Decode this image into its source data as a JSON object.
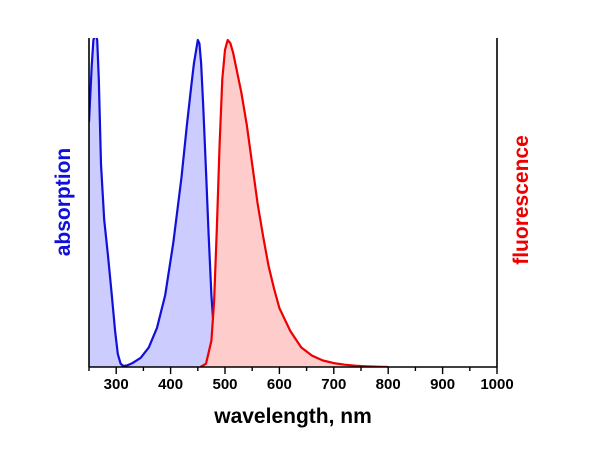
{
  "chart_data": {
    "type": "area",
    "xlabel": "wavelength, nm",
    "ylabel_left": "absorption",
    "ylabel_right": "fluorescence",
    "xlim": [
      250,
      1000
    ],
    "ylim": [
      0,
      1
    ],
    "x_ticks": [
      300,
      400,
      500,
      600,
      700,
      800,
      900,
      1000
    ],
    "grid": false,
    "colors": {
      "absorption_line": "#1010d8",
      "absorption_fill": "#ccccff",
      "fluorescence_line": "#ee0000",
      "fluorescence_fill": "#ffcccc"
    },
    "series": [
      {
        "name": "absorption",
        "axis": "left",
        "x": [
          250,
          255,
          258,
          262,
          265,
          268,
          272,
          278,
          285,
          292,
          298,
          303,
          308,
          313,
          320,
          330,
          345,
          360,
          375,
          390,
          405,
          420,
          430,
          438,
          443,
          447,
          450,
          453,
          456,
          460,
          465,
          470,
          475,
          480,
          485,
          490,
          500,
          510,
          520,
          530,
          540
        ],
        "values": [
          0.75,
          0.92,
          1.0,
          1.02,
          1.0,
          0.88,
          0.62,
          0.45,
          0.34,
          0.22,
          0.11,
          0.04,
          0.01,
          0.003,
          0.005,
          0.012,
          0.028,
          0.06,
          0.12,
          0.22,
          0.38,
          0.58,
          0.74,
          0.86,
          0.93,
          0.97,
          1.0,
          0.99,
          0.93,
          0.8,
          0.6,
          0.4,
          0.22,
          0.1,
          0.04,
          0.015,
          0.006,
          0.004,
          0.005,
          0.004,
          0.0
        ]
      },
      {
        "name": "fluorescence",
        "axis": "right",
        "x": [
          455,
          465,
          475,
          480,
          485,
          490,
          495,
          500,
          505,
          510,
          515,
          520,
          530,
          540,
          550,
          560,
          570,
          580,
          590,
          600,
          620,
          640,
          660,
          680,
          700,
          720,
          740,
          760,
          780,
          800
        ],
        "values": [
          0.0,
          0.01,
          0.08,
          0.2,
          0.42,
          0.68,
          0.88,
          0.97,
          1.0,
          0.99,
          0.96,
          0.92,
          0.84,
          0.74,
          0.62,
          0.5,
          0.4,
          0.31,
          0.24,
          0.18,
          0.11,
          0.06,
          0.035,
          0.02,
          0.012,
          0.007,
          0.004,
          0.002,
          0.001,
          0.0
        ]
      }
    ]
  }
}
